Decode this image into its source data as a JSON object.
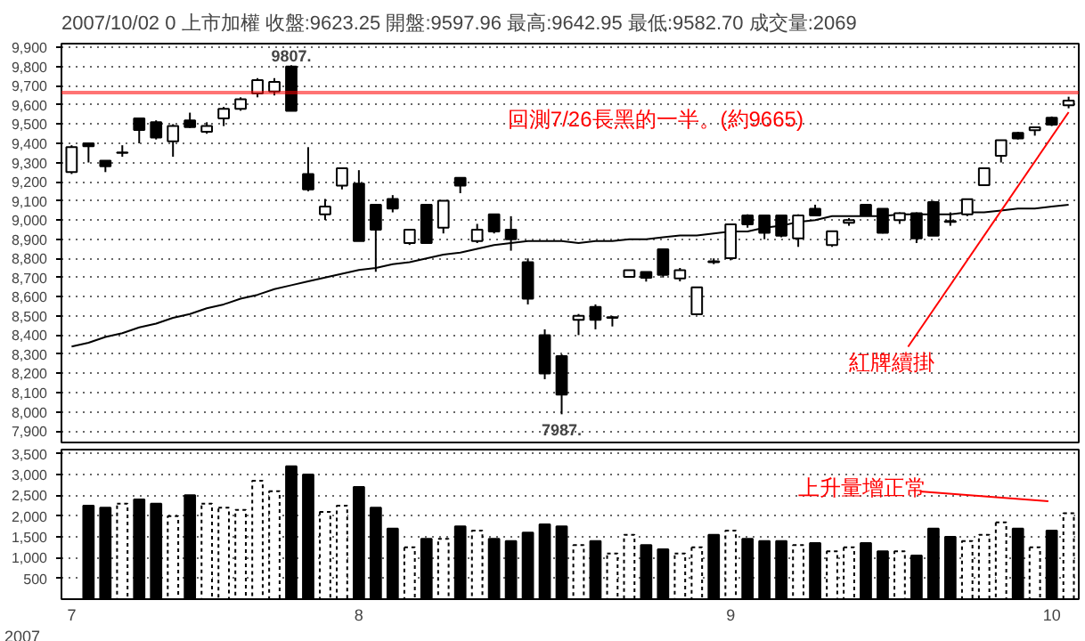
{
  "chart_data": [
    {
      "type": "candlestick",
      "title": "2007/10/02     0 上市加權     收盤:9623.25   開盤:9597.96   最高:9642.95   最低:9582.70   成交量:2069",
      "categories": [
        null,
        null,
        null,
        null,
        null,
        null,
        null,
        null,
        null,
        null,
        null,
        null,
        null,
        null,
        null,
        null,
        null,
        null,
        null,
        null,
        null,
        null,
        null,
        null,
        null,
        null,
        null,
        null,
        null,
        null,
        null,
        null,
        null,
        null,
        null,
        null,
        null,
        null,
        null,
        null,
        null,
        null,
        null,
        null,
        null,
        null,
        null,
        null,
        null,
        null,
        null,
        null,
        null,
        null,
        null,
        null,
        null,
        null,
        null,
        null
      ],
      "ohlc": [
        [
          9250,
          9390,
          9240,
          9380
        ],
        [
          9400,
          9400,
          9300,
          9385
        ],
        [
          9310,
          9310,
          9250,
          9280
        ],
        [
          9350,
          9390,
          9330,
          9352
        ],
        [
          9530,
          9530,
          9400,
          9470
        ],
        [
          9510,
          9520,
          9420,
          9430
        ],
        [
          9410,
          9500,
          9330,
          9490
        ],
        [
          9520,
          9560,
          9480,
          9485
        ],
        [
          9460,
          9510,
          9450,
          9490
        ],
        [
          9530,
          9590,
          9490,
          9580
        ],
        [
          9580,
          9640,
          9570,
          9630
        ],
        [
          9660,
          9740,
          9640,
          9730
        ],
        [
          9670,
          9740,
          9650,
          9720
        ],
        [
          9800,
          9807,
          9570,
          9570
        ],
        [
          9240,
          9380,
          9150,
          9160
        ],
        [
          9030,
          9110,
          9000,
          9070
        ],
        [
          9180,
          9270,
          9160,
          9270
        ],
        [
          9190,
          9260,
          8890,
          8890
        ],
        [
          9080,
          9080,
          8730,
          8950
        ],
        [
          9110,
          9130,
          9040,
          9060
        ],
        [
          8880,
          8950,
          8870,
          8950
        ],
        [
          9080,
          9080,
          8880,
          8880
        ],
        [
          8960,
          9100,
          8930,
          9100
        ],
        [
          9220,
          9220,
          9140,
          9180
        ],
        [
          8890,
          8980,
          8880,
          8950
        ],
        [
          9030,
          9030,
          8930,
          8940
        ],
        [
          8950,
          9020,
          8840,
          8900
        ],
        [
          8780,
          8800,
          8560,
          8590
        ],
        [
          8400,
          8430,
          8170,
          8200
        ],
        [
          8290,
          8300,
          7987,
          8090
        ],
        [
          8480,
          8510,
          8400,
          8500
        ],
        [
          8547,
          8560,
          8430,
          8480
        ],
        [
          8494,
          8500,
          8445,
          8490
        ],
        [
          8703,
          8740,
          8700,
          8738
        ],
        [
          8729,
          8730,
          8679,
          8699
        ],
        [
          8848,
          8850,
          8700,
          8714
        ],
        [
          8695,
          8750,
          8680,
          8738
        ],
        [
          8509,
          8650,
          8505,
          8649
        ],
        [
          8780,
          8800,
          8770,
          8785
        ],
        [
          8801,
          8980,
          8790,
          8977
        ],
        [
          9024,
          9030,
          8960,
          8977
        ],
        [
          9024,
          9024,
          8900,
          8933
        ],
        [
          9024,
          9024,
          8910,
          8918
        ],
        [
          8904,
          9030,
          8860,
          9024
        ],
        [
          9059,
          9080,
          9020,
          9024
        ],
        [
          8870,
          8945,
          8860,
          8942
        ],
        [
          8986,
          9010,
          8970,
          9000
        ],
        [
          9080,
          9080,
          9020,
          9024
        ],
        [
          9059,
          9060,
          8930,
          8933
        ],
        [
          9000,
          9040,
          8980,
          9035
        ],
        [
          9035,
          9040,
          8880,
          8904
        ],
        [
          9094,
          9100,
          8918,
          8918
        ],
        [
          8990,
          9040,
          8970,
          8995
        ],
        [
          9030,
          9110,
          9020,
          9109
        ],
        [
          9182,
          9270,
          9180,
          9270
        ],
        [
          9335,
          9416,
          9300,
          9416
        ],
        [
          9454,
          9460,
          9420,
          9425
        ],
        [
          9469,
          9484,
          9440,
          9484
        ],
        [
          9533,
          9540,
          9490,
          9498
        ],
        [
          9597.96,
          9642.95,
          9582.7,
          9623.25
        ]
      ],
      "series": [
        {
          "type": "line",
          "color": "#000000",
          "values": [
            8340,
            8360,
            8390,
            8410,
            8440,
            8460,
            8490,
            8510,
            8540,
            8560,
            8590,
            8610,
            8640,
            8660,
            8680,
            8700,
            8720,
            8740,
            8750,
            8770,
            8780,
            8800,
            8820,
            8830,
            8850,
            8870,
            8880,
            8890,
            8890,
            8890,
            8880,
            8890,
            8890,
            8900,
            8900,
            8910,
            8920,
            8920,
            8930,
            8940,
            8940,
            8960,
            8970,
            8990,
            9000,
            9020,
            9020,
            9020,
            9020,
            9030,
            9030,
            9030,
            9030,
            9040,
            9040,
            9050,
            9060,
            9060,
            9070,
            9080
          ]
        }
      ],
      "ylim": [
        7840,
        9920
      ],
      "yticks": [
        {
          "value": 7900,
          "label": "7,900"
        },
        {
          "value": 8000,
          "label": "8,000"
        },
        {
          "value": 8100,
          "label": "8,100"
        },
        {
          "value": 8200,
          "label": "8,200"
        },
        {
          "value": 8300,
          "label": "8,300"
        },
        {
          "value": 8400,
          "label": "8,400"
        },
        {
          "value": 8500,
          "label": "8,500"
        },
        {
          "value": 8600,
          "label": "8,600"
        },
        {
          "value": 8700,
          "label": "8,700"
        },
        {
          "value": 8800,
          "label": "8,800"
        },
        {
          "value": 8900,
          "label": "8,900"
        },
        {
          "value": 9000,
          "label": "9,000"
        },
        {
          "value": 9100,
          "label": "9,100"
        },
        {
          "value": 9200,
          "label": "9,200"
        },
        {
          "value": 9300,
          "label": "9,300"
        },
        {
          "value": 9400,
          "label": "9,400"
        },
        {
          "value": 9500,
          "label": "9,500"
        },
        {
          "value": 9600,
          "label": "9,600"
        },
        {
          "value": 9700,
          "label": "9,700"
        },
        {
          "value": 9800,
          "label": "9,800"
        },
        {
          "value": 9900,
          "label": "9,900"
        }
      ],
      "ref_lines": [
        {
          "axis": "y",
          "value": 9665,
          "label": "回測7/26長黑的一半。(約9665)",
          "color": "#ff0000"
        }
      ],
      "annotations": [
        {
          "text": "9807.",
          "y": 9807
        },
        {
          "text": "7987.",
          "y": 7987
        },
        "紅牌續掛"
      ],
      "grid": "y",
      "tick_labels": "y"
    },
    {
      "type": "bar",
      "categories": [
        "7",
        null,
        null,
        null,
        null,
        null,
        null,
        null,
        null,
        null,
        null,
        null,
        null,
        null,
        null,
        null,
        null,
        "8",
        null,
        null,
        null,
        null,
        null,
        null,
        null,
        null,
        null,
        null,
        null,
        null,
        null,
        null,
        null,
        null,
        null,
        null,
        null,
        null,
        null,
        "9",
        null,
        null,
        null,
        null,
        null,
        null,
        null,
        null,
        null,
        null,
        null,
        null,
        null,
        null,
        null,
        null,
        null,
        null,
        "10",
        null
      ],
      "values": [
        null,
        2250,
        2200,
        2300,
        2400,
        2300,
        2000,
        2500,
        2300,
        2200,
        2150,
        2850,
        2600,
        3200,
        3000,
        2100,
        2250,
        2700,
        2200,
        1700,
        1250,
        1450,
        1450,
        1750,
        1650,
        1450,
        1400,
        1600,
        1800,
        1750,
        1300,
        1400,
        1100,
        1550,
        1300,
        1200,
        1100,
        1250,
        1550,
        1650,
        1450,
        1400,
        1400,
        1300,
        1350,
        1150,
        1250,
        1350,
        1150,
        1150,
        1050,
        1700,
        1500,
        1400,
        1550,
        1850,
        1700,
        1250,
        1650,
        2069
      ],
      "colors": [
        "#ffffff",
        "#000000",
        "#000000",
        "#ffffff",
        "#000000",
        "#000000",
        "#ffffff",
        "#000000",
        "#ffffff",
        "#ffffff",
        "#ffffff",
        "#ffffff",
        "#ffffff",
        "#000000",
        "#000000",
        "#ffffff",
        "#ffffff",
        "#000000",
        "#000000",
        "#000000",
        "#ffffff",
        "#000000",
        "#ffffff",
        "#000000",
        "#ffffff",
        "#000000",
        "#000000",
        "#000000",
        "#000000",
        "#000000",
        "#ffffff",
        "#000000",
        "#ffffff",
        "#ffffff",
        "#000000",
        "#000000",
        "#ffffff",
        "#ffffff",
        "#000000",
        "#ffffff",
        "#000000",
        "#000000",
        "#000000",
        "#ffffff",
        "#000000",
        "#ffffff",
        "#ffffff",
        "#000000",
        "#000000",
        "#ffffff",
        "#000000",
        "#000000",
        "#000000",
        "#ffffff",
        "#ffffff",
        "#ffffff",
        "#000000",
        "#ffffff",
        "#000000",
        "#ffffff"
      ],
      "ylim": [
        0,
        3600
      ],
      "yticks": [
        {
          "value": 500,
          "label": "500"
        },
        {
          "value": 1000,
          "label": "1,000"
        },
        {
          "value": 1500,
          "label": "1,500"
        },
        {
          "value": 2000,
          "label": "2,000"
        },
        {
          "value": 2500,
          "label": "2,500"
        },
        {
          "value": 3000,
          "label": "3,000"
        },
        {
          "value": 3500,
          "label": "3,500"
        }
      ],
      "annotations": [
        "上升量增正常",
        "2007"
      ],
      "grid": "y"
    }
  ]
}
